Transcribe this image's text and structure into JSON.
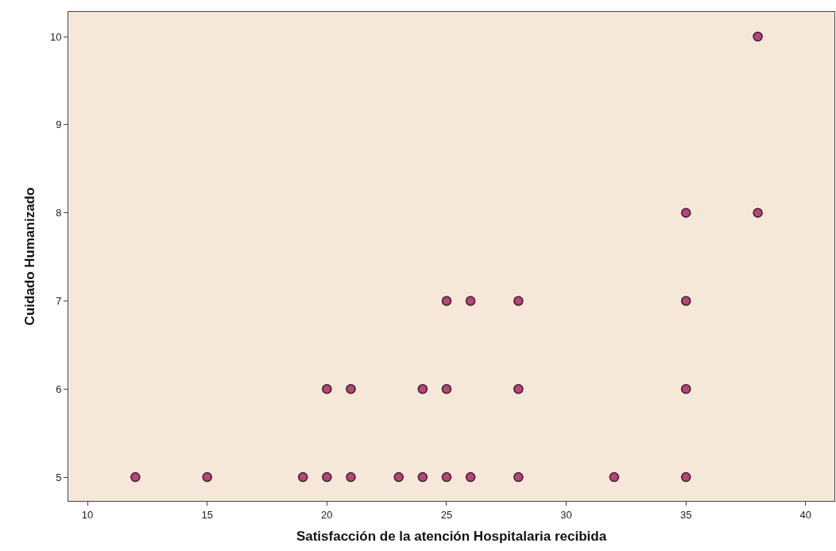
{
  "chart_data": {
    "type": "scatter",
    "xlabel": "Satisfacción de la atención Hospitalaria recibida",
    "ylabel": "Cuidado Humanizado",
    "x": [
      12,
      15,
      19,
      20,
      21,
      23,
      24,
      25,
      26,
      28,
      32,
      35,
      20,
      21,
      24,
      25,
      28,
      35,
      25,
      26,
      28,
      35,
      35,
      38,
      38
    ],
    "values": [
      5,
      5,
      5,
      5,
      5,
      5,
      5,
      5,
      5,
      5,
      5,
      5,
      6,
      6,
      6,
      6,
      6,
      6,
      7,
      7,
      7,
      7,
      8,
      8,
      10
    ],
    "color": "#b8447c",
    "marker": "circle",
    "grid": false,
    "xlim": [
      9.2,
      41.2
    ],
    "xticks": [
      10,
      15,
      20,
      25,
      30,
      35,
      40
    ],
    "ylim": [
      4.73,
      10.28
    ],
    "yticks": [
      5,
      6,
      7,
      8,
      9,
      10
    ]
  }
}
